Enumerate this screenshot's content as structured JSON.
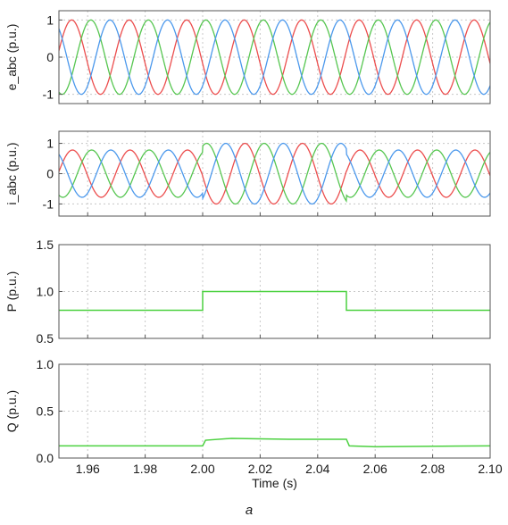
{
  "figure": {
    "caption": "a"
  },
  "colors": {
    "phase_a": "#ec4d4d",
    "phase_b": "#56c650",
    "phase_c": "#4b98ec",
    "power": "#4cd140",
    "grid": "#c8c8c8",
    "frame": "#555555"
  },
  "chart_data": [
    {
      "type": "line",
      "ylabel": "e_abc (p.u.)",
      "xlim": [
        1.95,
        2.1
      ],
      "ylim": [
        -1.25,
        1.25
      ],
      "yticks": [
        1,
        0,
        -1
      ],
      "ytick_labels": [
        "1",
        "0",
        "-1"
      ],
      "grid": true,
      "frequency_hz": 50,
      "series": [
        {
          "color": "#ec4d4d",
          "amplitude": 1.0,
          "phase_deg": 190
        },
        {
          "color": "#56c650",
          "amplitude": 1.0,
          "phase_deg": 70
        },
        {
          "color": "#4b98ec",
          "amplitude": 1.0,
          "phase_deg": -50
        }
      ],
      "events": [
        {
          "t": 2.0,
          "amplitude_after": 1.0
        },
        {
          "t": 2.05
        }
      ]
    },
    {
      "type": "line",
      "ylabel": "i_abc (p.u.)",
      "xlim": [
        1.95,
        2.1
      ],
      "ylim": [
        -1.4,
        1.4
      ],
      "yticks": [
        1,
        0,
        -1
      ],
      "ytick_labels": [
        "1",
        "0",
        "-1"
      ],
      "grid": true,
      "frequency_hz": 50,
      "series": [
        {
          "color": "#ec4d4d",
          "amplitude_segments": [
            0.78,
            1.0,
            0.78
          ],
          "phase_deg": 185
        },
        {
          "color": "#56c650",
          "amplitude_segments": [
            0.78,
            1.0,
            0.78
          ],
          "phase_deg": 65
        },
        {
          "color": "#4b98ec",
          "amplitude_segments": [
            0.78,
            1.0,
            0.78
          ],
          "phase_deg": -55
        }
      ],
      "segment_breaks": [
        2.0,
        2.05
      ]
    },
    {
      "type": "line",
      "ylabel": "P (p.u.)",
      "xlim": [
        1.95,
        2.1
      ],
      "ylim": [
        0.5,
        1.5
      ],
      "yticks": [
        1.5,
        1.0,
        0.5
      ],
      "ytick_labels": [
        "1.5",
        "1.0",
        "0.5"
      ],
      "grid": true,
      "series": [
        {
          "color": "#4cd140",
          "x": [
            1.95,
            2.0,
            2.0,
            2.05,
            2.05,
            2.1
          ],
          "y": [
            0.8,
            0.8,
            1.0,
            1.0,
            0.8,
            0.8
          ]
        }
      ]
    },
    {
      "type": "line",
      "ylabel": "Q (p.u.)",
      "xlabel": "Time (s)",
      "xlim": [
        1.95,
        2.1
      ],
      "ylim": [
        0.0,
        1.0
      ],
      "yticks": [
        1.0,
        0.5,
        0.0
      ],
      "ytick_labels": [
        "1.0",
        "0.5",
        "0.0"
      ],
      "xticks": [
        1.96,
        1.98,
        2.0,
        2.02,
        2.04,
        2.06,
        2.08,
        2.1
      ],
      "xtick_labels": [
        "1.96",
        "1.98",
        "2.00",
        "2.02",
        "2.04",
        "2.06",
        "2.08",
        "2.10"
      ],
      "grid": true,
      "series": [
        {
          "color": "#4cd140",
          "x": [
            1.95,
            2.0,
            2.001,
            2.01,
            2.03,
            2.05,
            2.051,
            2.06,
            2.1
          ],
          "y": [
            0.13,
            0.13,
            0.19,
            0.21,
            0.2,
            0.2,
            0.13,
            0.12,
            0.13
          ]
        }
      ]
    }
  ]
}
